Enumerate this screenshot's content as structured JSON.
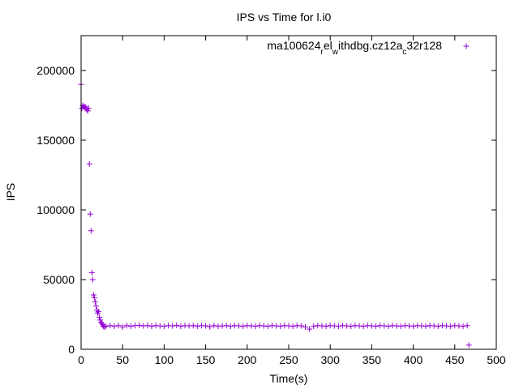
{
  "chart_data": {
    "type": "scatter",
    "title": "IPS vs Time for l.i0",
    "xlabel": "Time(s)",
    "ylabel": "IPS",
    "xlim": [
      0,
      500
    ],
    "ylim": [
      0,
      225000
    ],
    "xticks": [
      0,
      50,
      100,
      150,
      200,
      250,
      300,
      350,
      400,
      450,
      500
    ],
    "yticks": [
      0,
      50000,
      100000,
      150000,
      200000
    ],
    "grid": false,
    "legend_position": "top-right",
    "marker": "plus",
    "series": [
      {
        "name": "ma100624_rel_withdbg.cz12a_c32r128",
        "color": "#9400d3",
        "points": [
          [
            0,
            190000
          ],
          [
            1,
            173000
          ],
          [
            2,
            175000
          ],
          [
            3,
            174000
          ],
          [
            4,
            173500
          ],
          [
            5,
            174000
          ],
          [
            6,
            173000
          ],
          [
            7,
            172000
          ],
          [
            8,
            171000
          ],
          [
            9,
            173000
          ],
          [
            10,
            133000
          ],
          [
            11,
            97000
          ],
          [
            12,
            85000
          ],
          [
            13,
            55000
          ],
          [
            14,
            50000
          ],
          [
            15,
            39000
          ],
          [
            16,
            37000
          ],
          [
            17,
            34000
          ],
          [
            18,
            31000
          ],
          [
            19,
            28000
          ],
          [
            20,
            26000
          ],
          [
            21,
            27000
          ],
          [
            22,
            23000
          ],
          [
            23,
            21000
          ],
          [
            24,
            19500
          ],
          [
            25,
            18500
          ],
          [
            26,
            17500
          ],
          [
            27,
            16500
          ],
          [
            28,
            16000
          ],
          [
            30,
            16500
          ],
          [
            35,
            17000
          ],
          [
            40,
            16500
          ],
          [
            45,
            17000
          ],
          [
            50,
            16000
          ],
          [
            55,
            17000
          ],
          [
            60,
            16500
          ],
          [
            65,
            17000
          ],
          [
            70,
            17200
          ],
          [
            75,
            16800
          ],
          [
            80,
            17000
          ],
          [
            85,
            16500
          ],
          [
            90,
            17000
          ],
          [
            95,
            16800
          ],
          [
            100,
            16500
          ],
          [
            105,
            17000
          ],
          [
            110,
            16800
          ],
          [
            115,
            17200
          ],
          [
            120,
            16500
          ],
          [
            125,
            17000
          ],
          [
            130,
            16800
          ],
          [
            135,
            17000
          ],
          [
            140,
            16500
          ],
          [
            145,
            17000
          ],
          [
            150,
            16800
          ],
          [
            155,
            16200
          ],
          [
            160,
            17000
          ],
          [
            165,
            16500
          ],
          [
            170,
            16800
          ],
          [
            175,
            17000
          ],
          [
            180,
            16500
          ],
          [
            185,
            17000
          ],
          [
            190,
            16800
          ],
          [
            195,
            16500
          ],
          [
            200,
            17000
          ],
          [
            205,
            16800
          ],
          [
            210,
            16500
          ],
          [
            215,
            17000
          ],
          [
            220,
            16800
          ],
          [
            225,
            16500
          ],
          [
            230,
            17000
          ],
          [
            235,
            16800
          ],
          [
            240,
            16500
          ],
          [
            245,
            17000
          ],
          [
            250,
            16800
          ],
          [
            255,
            16500
          ],
          [
            260,
            17000
          ],
          [
            265,
            16800
          ],
          [
            270,
            16000
          ],
          [
            275,
            14500
          ],
          [
            280,
            16500
          ],
          [
            285,
            17000
          ],
          [
            290,
            16800
          ],
          [
            295,
            16500
          ],
          [
            300,
            17000
          ],
          [
            305,
            16800
          ],
          [
            310,
            16500
          ],
          [
            315,
            17000
          ],
          [
            320,
            16800
          ],
          [
            325,
            16500
          ],
          [
            330,
            17000
          ],
          [
            335,
            16800
          ],
          [
            340,
            16500
          ],
          [
            345,
            17000
          ],
          [
            350,
            16800
          ],
          [
            355,
            16500
          ],
          [
            360,
            17000
          ],
          [
            365,
            16800
          ],
          [
            370,
            16500
          ],
          [
            375,
            17000
          ],
          [
            380,
            16800
          ],
          [
            385,
            16500
          ],
          [
            390,
            17000
          ],
          [
            395,
            16800
          ],
          [
            400,
            16500
          ],
          [
            405,
            17000
          ],
          [
            410,
            16800
          ],
          [
            415,
            16500
          ],
          [
            420,
            17000
          ],
          [
            425,
            16800
          ],
          [
            430,
            16500
          ],
          [
            435,
            17000
          ],
          [
            440,
            16800
          ],
          [
            445,
            16500
          ],
          [
            450,
            17000
          ],
          [
            455,
            16800
          ],
          [
            460,
            16500
          ],
          [
            465,
            17000
          ],
          [
            467,
            3000
          ]
        ]
      }
    ]
  }
}
